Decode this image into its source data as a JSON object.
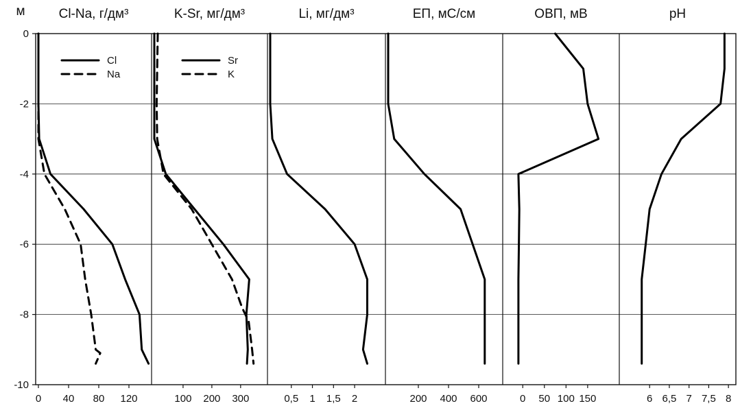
{
  "chart_data": {
    "type": "line",
    "y_axis": {
      "label": "м",
      "ylim": [
        -10,
        0
      ],
      "ticks": [
        0,
        -2,
        -4,
        -6,
        -8,
        -10
      ],
      "tick_labels": [
        "0",
        "-2",
        "-4",
        "-6",
        "-8",
        "-10"
      ],
      "grid": true
    },
    "panels": [
      {
        "id": "clna",
        "title": "Cl-Na, г/дм³",
        "xlim": [
          0,
          150
        ],
        "x_ticks": [
          0,
          40,
          80,
          120
        ],
        "x_tick_labels": [
          "0",
          "40",
          "80",
          "120"
        ],
        "legend": [
          {
            "label": "Cl",
            "style": "solid"
          },
          {
            "label": "Na",
            "style": "dashed"
          }
        ],
        "series": [
          {
            "name": "Cl",
            "style": "solid",
            "x": [
              0,
              0,
              0,
              1,
              16,
              60,
              98,
              115,
              134,
              137,
              146
            ],
            "y": [
              0,
              -1,
              -2,
              -3,
              -4,
              -5,
              -6,
              -7,
              -8,
              -9,
              -9.4
            ]
          },
          {
            "name": "Na",
            "style": "dashed",
            "x": [
              0,
              0,
              0,
              0,
              8,
              35,
              56,
              62,
              70,
              76,
              82,
              76
            ],
            "y": [
              0,
              -1,
              -2,
              -3,
              -4,
              -5,
              -6,
              -7,
              -8,
              -9,
              -9.1,
              -9.4
            ]
          }
        ]
      },
      {
        "id": "ksr",
        "title": "K-Sr, мг/дм³",
        "xlim": [
          0,
          360
        ],
        "x_ticks": [
          100,
          200,
          300
        ],
        "x_tick_labels": [
          "100",
          "200",
          "300"
        ],
        "legend": [
          {
            "label": "Sr",
            "style": "solid"
          },
          {
            "label": "K",
            "style": "dashed"
          }
        ],
        "series": [
          {
            "name": "Sr",
            "style": "solid",
            "x": [
              0,
              0,
              0,
              0,
              40,
              140,
              240,
              330,
              320,
              325,
              322
            ],
            "y": [
              0,
              -1,
              -2,
              -3,
              -4,
              -5,
              -6,
              -7,
              -8,
              -9,
              -9.4
            ]
          },
          {
            "name": "K",
            "style": "dashed",
            "x": [
              12,
              10,
              8,
              10,
              32,
              130,
              200,
              270,
              305,
              328,
              340,
              345
            ],
            "y": [
              0,
              -1,
              -2,
              -3,
              -4,
              -5,
              -6,
              -7,
              -7.8,
              -8.2,
              -9,
              -9.4
            ]
          }
        ]
      },
      {
        "id": "li",
        "title": "Li, мг/дм³",
        "xlim": [
          0,
          2.6
        ],
        "x_ticks": [
          0.5,
          1,
          1.5,
          2
        ],
        "x_tick_labels": [
          "0,5",
          "1",
          "1,5",
          "2"
        ],
        "series": [
          {
            "name": "Li",
            "style": "solid",
            "x": [
              0,
              0,
              0,
              0.05,
              0.4,
              1.3,
              2.0,
              2.3,
              2.3,
              2.2,
              2.3
            ],
            "y": [
              0,
              -1,
              -2,
              -3,
              -4,
              -5,
              -6,
              -7,
              -8,
              -9,
              -9.4
            ]
          }
        ]
      },
      {
        "id": "ep",
        "title": "ЕП, мС/см",
        "xlim": [
          0,
          750
        ],
        "x_ticks": [
          200,
          400,
          600
        ],
        "x_tick_labels": [
          "200",
          "400",
          "600"
        ],
        "series": [
          {
            "name": "ЕП",
            "style": "solid",
            "x": [
              0,
              0,
              0,
              40,
              240,
              480,
              560,
              640,
              640,
              640,
              640
            ],
            "y": [
              0,
              -1,
              -2,
              -3,
              -4,
              -5,
              -6,
              -7,
              -8,
              -9,
              -9.4
            ]
          }
        ]
      },
      {
        "id": "ovp",
        "title": "ОВП, мВ",
        "xlim": [
          -40,
          220
        ],
        "x_ticks": [
          0,
          50,
          100,
          150
        ],
        "x_tick_labels": [
          "0",
          "50",
          "100",
          "150"
        ],
        "series": [
          {
            "name": "ОВП",
            "style": "solid",
            "x": [
              75,
              140,
              150,
              175,
              -10,
              -8,
              -9,
              -10,
              -10,
              -10,
              -10
            ],
            "y": [
              0,
              -1,
              -2,
              -3,
              -4,
              -5,
              -6,
              -7,
              -8,
              -9,
              -9.4
            ]
          }
        ]
      },
      {
        "id": "ph",
        "title": "pH",
        "xlim": [
          5.3,
          8.05
        ],
        "x_ticks": [
          6,
          6.5,
          7,
          7.5,
          8
        ],
        "x_tick_labels": [
          "6",
          "6,5",
          "7",
          "7,5",
          "8"
        ],
        "series": [
          {
            "name": "pH",
            "style": "solid",
            "x": [
              7.9,
              7.9,
              7.8,
              6.8,
              6.3,
              6.0,
              5.9,
              5.8,
              5.8,
              5.8,
              5.8
            ],
            "y": [
              0,
              -1,
              -2,
              -3,
              -4,
              -5,
              -6,
              -7,
              -8,
              -9,
              -9.4
            ]
          }
        ]
      }
    ]
  }
}
